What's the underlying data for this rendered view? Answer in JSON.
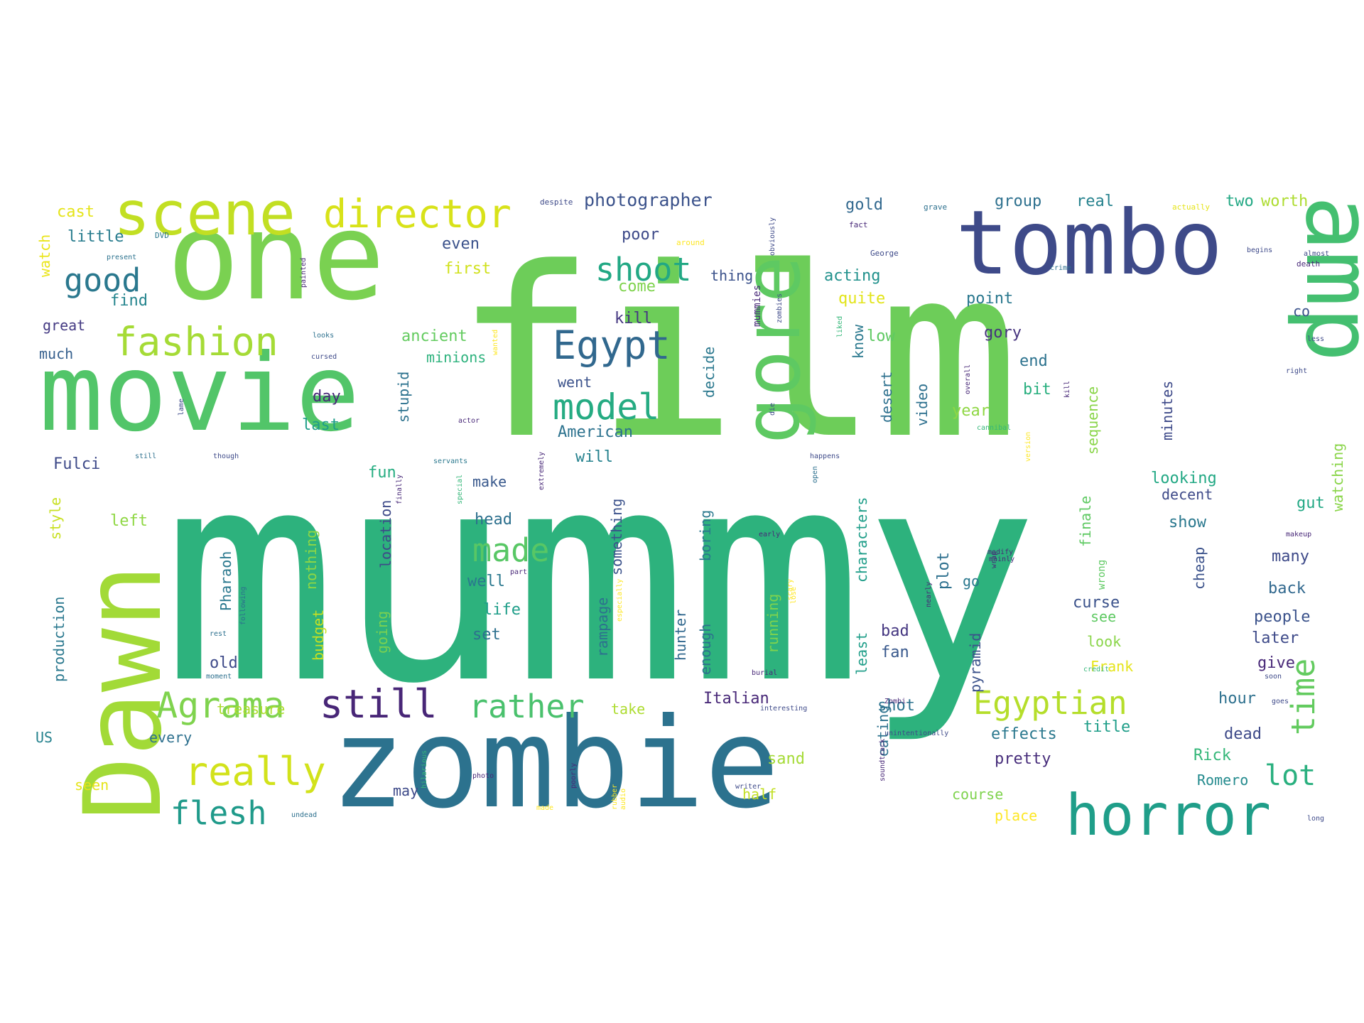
{
  "palette": {
    "dark_purple": "#482677",
    "indigo": "#3E4A89",
    "blue": "#31688E",
    "teal": "#26828E",
    "teal_green": "#1F9E89",
    "green": "#35B779",
    "light_green": "#6DCD59",
    "lime": "#B4DE2C",
    "yellow": "#D8E219",
    "bright_yellow": "#FDE725"
  },
  "words": [
    {
      "text": "mummy",
      "color": "#2DB27D"
    },
    {
      "text": "film",
      "color": "#6DCD59"
    },
    {
      "text": "zombie",
      "color": "#2C728E"
    },
    {
      "text": "movie",
      "color": "#52C569"
    },
    {
      "text": "one",
      "color": "#7AD151"
    },
    {
      "text": "Dawn",
      "color": "#A2DA37"
    },
    {
      "text": "tombo",
      "color": "#3E4A89"
    },
    {
      "text": "amp",
      "color": "#44BF70"
    },
    {
      "text": "scene",
      "color": "#C2DF23"
    },
    {
      "text": "gore",
      "color": "#5EC962"
    },
    {
      "text": "horror",
      "color": "#1F9E89"
    },
    {
      "text": "director",
      "color": "#D8E219"
    },
    {
      "text": "fashion",
      "color": "#A5DB36"
    },
    {
      "text": "Egypt",
      "color": "#31688E"
    },
    {
      "text": "model",
      "color": "#25AB82"
    },
    {
      "text": "shoot",
      "color": "#22A884"
    },
    {
      "text": "Agrama",
      "color": "#7FD34E"
    },
    {
      "text": "still",
      "color": "#482677"
    },
    {
      "text": "really",
      "color": "#D2E21B"
    },
    {
      "text": "rather",
      "color": "#4AC16D"
    },
    {
      "text": "Egyptian",
      "color": "#B5DE2B"
    },
    {
      "text": "good",
      "color": "#2A788E"
    },
    {
      "text": "flesh",
      "color": "#1F9A8A"
    },
    {
      "text": "time",
      "color": "#63CB5F"
    },
    {
      "text": "lot",
      "color": "#2AB07F"
    },
    {
      "text": "made",
      "color": "#58C765"
    },
    {
      "text": "photographer",
      "color": "#3B528B"
    },
    {
      "text": "cast",
      "color": "#E5E419"
    },
    {
      "text": "little",
      "color": "#287C8E"
    },
    {
      "text": "find",
      "color": "#25858E"
    },
    {
      "text": "great",
      "color": "#443A83"
    },
    {
      "text": "much",
      "color": "#355F8D"
    },
    {
      "text": "watch",
      "color": "#EAE51A"
    },
    {
      "text": "even",
      "color": "#3B528B"
    },
    {
      "text": "first",
      "color": "#D0E11C"
    },
    {
      "text": "poor",
      "color": "#3E4A89"
    },
    {
      "text": "come",
      "color": "#7FD34E"
    },
    {
      "text": "thing",
      "color": "#3B528B"
    },
    {
      "text": "kill",
      "color": "#453781"
    },
    {
      "text": "gold",
      "color": "#31688E"
    },
    {
      "text": "acting",
      "color": "#21918C"
    },
    {
      "text": "quite",
      "color": "#E2E418"
    },
    {
      "text": "group",
      "color": "#2D708E"
    },
    {
      "text": "real",
      "color": "#26828E"
    },
    {
      "text": "two",
      "color": "#22A884"
    },
    {
      "text": "worth",
      "color": "#ADDC30"
    },
    {
      "text": "point",
      "color": "#2A788E"
    },
    {
      "text": "gory",
      "color": "#46337E"
    },
    {
      "text": "end",
      "color": "#2C728E"
    },
    {
      "text": "bit",
      "color": "#29AF7F"
    },
    {
      "text": "year",
      "color": "#8FD744"
    },
    {
      "text": "co",
      "color": "#3B528B"
    },
    {
      "text": "low",
      "color": "#5EC962"
    },
    {
      "text": "ancient",
      "color": "#63CB5F"
    },
    {
      "text": "minions",
      "color": "#2DB27D"
    },
    {
      "text": "went",
      "color": "#3B528B"
    },
    {
      "text": "day",
      "color": "#482878"
    },
    {
      "text": "last",
      "color": "#1F9E89"
    },
    {
      "text": "American",
      "color": "#2C728E"
    },
    {
      "text": "will",
      "color": "#26828E"
    },
    {
      "text": "Fulci",
      "color": "#3E4A89"
    },
    {
      "text": "fun",
      "color": "#26AD81"
    },
    {
      "text": "style",
      "color": "#C8E020"
    },
    {
      "text": "left",
      "color": "#8FD744"
    },
    {
      "text": "head",
      "color": "#2D708E"
    },
    {
      "text": "make",
      "color": "#38588C"
    },
    {
      "text": "looking",
      "color": "#22A884"
    },
    {
      "text": "decent",
      "color": "#3E4A89"
    },
    {
      "text": "gut",
      "color": "#22A884"
    },
    {
      "text": "show",
      "color": "#2A788E"
    },
    {
      "text": "many",
      "color": "#3E4A89"
    },
    {
      "text": "back",
      "color": "#31688E"
    },
    {
      "text": "people",
      "color": "#3B528B"
    },
    {
      "text": "later",
      "color": "#3E4A89"
    },
    {
      "text": "give",
      "color": "#482878"
    },
    {
      "text": "hour",
      "color": "#2D708E"
    },
    {
      "text": "dead",
      "color": "#3E4A89"
    },
    {
      "text": "Rick",
      "color": "#35B779"
    },
    {
      "text": "Romero",
      "color": "#238A8D"
    },
    {
      "text": "title",
      "color": "#1F9E89"
    },
    {
      "text": "effects",
      "color": "#2A788E"
    },
    {
      "text": "pretty",
      "color": "#472D7B"
    },
    {
      "text": "course",
      "color": "#7FD34E"
    },
    {
      "text": "place",
      "color": "#FDE725"
    },
    {
      "text": "curse",
      "color": "#3B528B"
    },
    {
      "text": "see",
      "color": "#5EC962"
    },
    {
      "text": "look",
      "color": "#89D548"
    },
    {
      "text": "Frank",
      "color": "#E5E419"
    },
    {
      "text": "bad",
      "color": "#453781"
    },
    {
      "text": "fan",
      "color": "#38588C"
    },
    {
      "text": "shot",
      "color": "#2C728E"
    },
    {
      "text": "go",
      "color": "#2A788E"
    },
    {
      "text": "Italian",
      "color": "#482878"
    },
    {
      "text": "take",
      "color": "#ADDC30"
    },
    {
      "text": "treasure",
      "color": "#ADDC30"
    },
    {
      "text": "every",
      "color": "#2D708E"
    },
    {
      "text": "US",
      "color": "#26828E"
    },
    {
      "text": "seen",
      "color": "#E5E419"
    },
    {
      "text": "may",
      "color": "#3E4A89"
    },
    {
      "text": "half",
      "color": "#C2DF23"
    },
    {
      "text": "sand",
      "color": "#A5DB36"
    },
    {
      "text": "well",
      "color": "#2A788E"
    },
    {
      "text": "life",
      "color": "#1F9E89"
    },
    {
      "text": "set",
      "color": "#2D708E"
    },
    {
      "text": "production",
      "color": "#2A788E"
    },
    {
      "text": "nothing",
      "color": "#8FD744"
    },
    {
      "text": "budget",
      "color": "#C8E020"
    },
    {
      "text": "going",
      "color": "#7AD151"
    },
    {
      "text": "location",
      "color": "#3E4A89"
    },
    {
      "text": "Pharaoh",
      "color": "#2A788E"
    },
    {
      "text": "old",
      "color": "#3E4A89"
    },
    {
      "text": "stupid",
      "color": "#2C728E"
    },
    {
      "text": "decide",
      "color": "#2A788E"
    },
    {
      "text": "something",
      "color": "#3B528B"
    },
    {
      "text": "rampage",
      "color": "#2D708E"
    },
    {
      "text": "hunter",
      "color": "#31688E"
    },
    {
      "text": "enough",
      "color": "#2D708E"
    },
    {
      "text": "boring",
      "color": "#2A788E"
    },
    {
      "text": "running",
      "color": "#7FD34E"
    },
    {
      "text": "plot",
      "color": "#2D708E"
    },
    {
      "text": "least",
      "color": "#1F9E89"
    },
    {
      "text": "characters",
      "color": "#1F9E89"
    },
    {
      "text": "pyramid",
      "color": "#3B528B"
    },
    {
      "text": "finale",
      "color": "#5EC962"
    },
    {
      "text": "cheap",
      "color": "#3B528B"
    },
    {
      "text": "sequence",
      "color": "#89D548"
    },
    {
      "text": "minutes",
      "color": "#3E4A89"
    },
    {
      "text": "watching",
      "color": "#89D548"
    },
    {
      "text": "desert",
      "color": "#2D708E"
    },
    {
      "text": "video",
      "color": "#2D708E"
    },
    {
      "text": "eating",
      "color": "#2C728E"
    },
    {
      "text": "know",
      "color": "#2A788E"
    },
    {
      "text": "mummies",
      "color": "#482878"
    },
    {
      "text": "wrong",
      "color": "#5EC962"
    },
    {
      "text": "despite",
      "color": "#3E4A89"
    },
    {
      "text": "grave",
      "color": "#2D708E"
    },
    {
      "text": "actually",
      "color": "#E5E419"
    },
    {
      "text": "fact",
      "color": "#482878"
    },
    {
      "text": "George",
      "color": "#3E4A89"
    },
    {
      "text": "around",
      "color": "#FDE725"
    },
    {
      "text": "DVD",
      "color": "#2A788E"
    },
    {
      "text": "present",
      "color": "#2C728E"
    },
    {
      "text": "death",
      "color": "#482878"
    },
    {
      "text": "begins",
      "color": "#3E4A89"
    },
    {
      "text": "almost",
      "color": "#3E4A89"
    },
    {
      "text": "right",
      "color": "#3E4A89"
    },
    {
      "text": "less",
      "color": "#3E4A89"
    },
    {
      "text": "makeup",
      "color": "#482878"
    },
    {
      "text": "long",
      "color": "#3E4A89"
    },
    {
      "text": "goes",
      "color": "#3E4A89"
    },
    {
      "text": "soon",
      "color": "#3E4A89"
    },
    {
      "text": "credit",
      "color": "#35B779"
    },
    {
      "text": "happens",
      "color": "#3E4A89"
    },
    {
      "text": "cannibal",
      "color": "#35B779"
    },
    {
      "text": "actor",
      "color": "#482878"
    },
    {
      "text": "servants",
      "color": "#2A788E"
    },
    {
      "text": "though",
      "color": "#3E4A89"
    },
    {
      "text": "still",
      "color": "#2D708E"
    },
    {
      "text": "lame",
      "color": "#3E4A89"
    },
    {
      "text": "Zombi",
      "color": "#482878"
    },
    {
      "text": "special",
      "color": "#35B779"
    },
    {
      "text": "extremely",
      "color": "#482878"
    },
    {
      "text": "finally",
      "color": "#482878"
    },
    {
      "text": "early",
      "color": "#482878"
    },
    {
      "text": "mainly",
      "color": "#482878"
    },
    {
      "text": "burial",
      "color": "#482878"
    },
    {
      "text": "interesting",
      "color": "#3E4A89"
    },
    {
      "text": "unintentionally",
      "color": "#3E4A89"
    },
    {
      "text": "hilarious",
      "color": "#35B779"
    },
    {
      "text": "undead",
      "color": "#2D708E"
    },
    {
      "text": "photo",
      "color": "#482878"
    },
    {
      "text": "poorly",
      "color": "#482878"
    },
    {
      "text": "soundtrack",
      "color": "#482878"
    },
    {
      "text": "writer",
      "color": "#3E4A89"
    },
    {
      "text": "rest",
      "color": "#2D708E"
    },
    {
      "text": "moment",
      "color": "#2D708E"
    },
    {
      "text": "made",
      "color": "#FDE725"
    },
    {
      "text": "audio",
      "color": "#FDE725"
    },
    {
      "text": "especially",
      "color": "#FDE725"
    },
    {
      "text": "scary",
      "color": "#FDE725"
    },
    {
      "text": "liked",
      "color": "#35B779"
    },
    {
      "text": "painted",
      "color": "#482878"
    },
    {
      "text": "cursed",
      "color": "#3E4A89"
    },
    {
      "text": "looks",
      "color": "#2D708E"
    },
    {
      "text": "zombies",
      "color": "#3E4A89"
    },
    {
      "text": "overall",
      "color": "#482878"
    },
    {
      "text": "obviously",
      "color": "#3E4A89"
    },
    {
      "text": "crime",
      "color": "#2D708E"
    },
    {
      "text": "version",
      "color": "#FDE725"
    },
    {
      "text": "modify",
      "color": "#482878"
    },
    {
      "text": "part",
      "color": "#482878"
    },
    {
      "text": "wrap",
      "color": "#482878"
    },
    {
      "text": "nearly",
      "color": "#482878"
    },
    {
      "text": "following",
      "color": "#2D708E"
    },
    {
      "text": "kill",
      "color": "#482878"
    },
    {
      "text": "lose",
      "color": "#FDE725"
    },
    {
      "text": "rubber",
      "color": "#FDE725"
    },
    {
      "text": "wanted",
      "color": "#FDE725"
    },
    {
      "text": "open",
      "color": "#2D708E"
    },
    {
      "text": "die",
      "color": "#3E4A89"
    }
  ]
}
